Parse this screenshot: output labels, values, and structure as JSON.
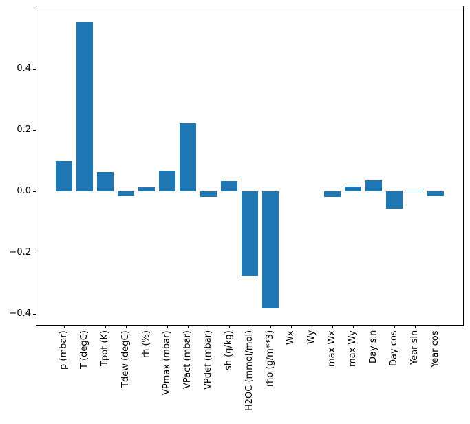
{
  "figure": {
    "background": "#ffffff",
    "bar_color": "#1f77b4",
    "spine_color": "#000000",
    "tick_color": "#000000",
    "text_color": "#000000"
  },
  "chart_data": {
    "type": "bar",
    "title": "",
    "xlabel": "",
    "ylabel": "",
    "grid": false,
    "legend": null,
    "x_tick_rotation": 90,
    "categories": [
      "p (mbar)",
      "T (degC)",
      "Tpot (K)",
      "Tdew (degC)",
      "rh (%)",
      "VPmax (mbar)",
      "VPact (mbar)",
      "VPdef (mbar)",
      "sh (g/kg)",
      "H2OC (mmol/mol)",
      "rho (g/m**3)",
      "Wx",
      "Wy",
      "max Wx",
      "max Wy",
      "Day sin",
      "Day cos",
      "Year sin",
      "Year cos"
    ],
    "values": [
      0.1,
      0.553,
      0.063,
      -0.016,
      0.014,
      0.068,
      0.223,
      -0.018,
      0.034,
      -0.276,
      -0.383,
      0.0,
      0.0,
      -0.018,
      0.016,
      0.036,
      -0.057,
      0.003,
      -0.016
    ],
    "ylim": [
      -0.437,
      0.608
    ],
    "yticks": [
      0.4,
      0.2,
      0.0,
      -0.2,
      -0.4
    ],
    "ytick_labels": [
      "0.4",
      "0.2",
      "0.0",
      "−0.2",
      "−0.4"
    ]
  }
}
